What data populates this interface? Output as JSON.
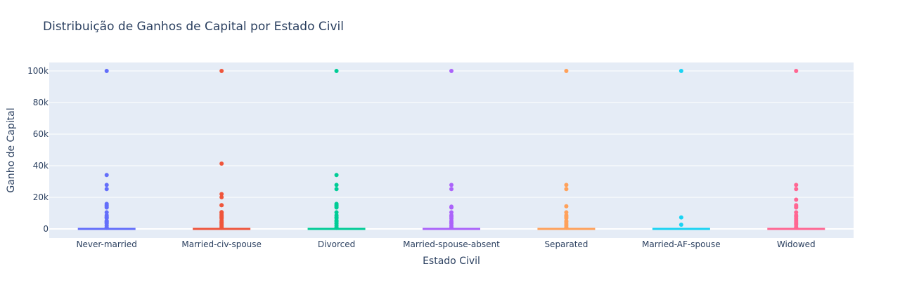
{
  "chart_data": {
    "type": "box",
    "title": "Distribuição de Ganhos de Capital por Estado Civil",
    "xlabel": "Estado Civil",
    "ylabel": "Ganho de Capital",
    "ylim": [
      -5000,
      105000
    ],
    "yticks": [
      0,
      20000,
      40000,
      60000,
      80000,
      100000
    ],
    "ytick_labels": [
      "0",
      "20k",
      "40k",
      "60k",
      "80k",
      "100k"
    ],
    "grid": true,
    "legend": "none",
    "categories": [
      "Never-married",
      "Married-civ-spouse",
      "Divorced",
      "Married-spouse-absent",
      "Separated",
      "Married-AF-spouse",
      "Widowed"
    ],
    "series": [
      {
        "category": "Never-married",
        "color": "#636efa",
        "median": 0,
        "q1": 0,
        "q3": 0,
        "outliers": [
          99999,
          34095,
          27828,
          25236,
          15831,
          15024,
          14344,
          13550,
          10520,
          8614,
          7688,
          7298,
          6849,
          5178,
          4787,
          4386,
          3908,
          3325,
          2174,
          1055,
          594
        ]
      },
      {
        "category": "Married-civ-spouse",
        "color": "#ef553b",
        "median": 0,
        "q1": 0,
        "q3": 0,
        "outliers": [
          99999,
          41310,
          22040,
          20051,
          15024,
          15020,
          10605,
          10520,
          9386,
          8614,
          7688,
          7298,
          6418,
          5178,
          4386,
          3908,
          3103,
          2407,
          1409,
          594
        ]
      },
      {
        "category": "Divorced",
        "color": "#00cc96",
        "median": 0,
        "q1": 0,
        "q3": 0,
        "outliers": [
          99999,
          34095,
          27828,
          25236,
          15831,
          15024,
          14344,
          13550,
          10520,
          8614,
          7430,
          6849,
          5455,
          4787,
          3674,
          3325,
          2174,
          1055,
          594
        ]
      },
      {
        "category": "Married-spouse-absent",
        "color": "#ab63fa",
        "median": 0,
        "q1": 0,
        "q3": 0,
        "outliers": [
          99999,
          27828,
          25236,
          14084,
          13550,
          10520,
          8614,
          7688,
          6497,
          5013,
          4101,
          3325,
          2174,
          1086
        ]
      },
      {
        "category": "Separated",
        "color": "#ffa15a",
        "median": 0,
        "q1": 0,
        "q3": 0,
        "outliers": [
          99999,
          27828,
          25236,
          14344,
          10520,
          8614,
          7688,
          6849,
          5013,
          4416,
          3103,
          2174,
          1055,
          594
        ]
      },
      {
        "category": "Married-AF-spouse",
        "color": "#19d3f3",
        "median": 0,
        "q1": 0,
        "q3": 0,
        "outliers": [
          99999,
          7298,
          2653
        ]
      },
      {
        "category": "Widowed",
        "color": "#ff6692",
        "median": 0,
        "q1": 0,
        "q3": 0,
        "outliers": [
          99999,
          27828,
          25236,
          18481,
          15024,
          14084,
          13550,
          10520,
          8614,
          7688,
          6418,
          5455,
          4386,
          3325,
          2597,
          1086,
          594
        ]
      }
    ]
  }
}
